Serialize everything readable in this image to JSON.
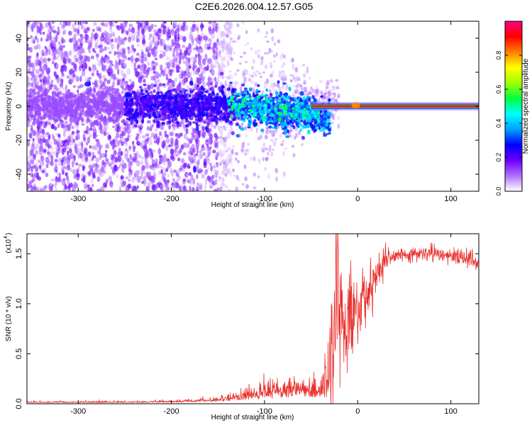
{
  "title": "C2E6.2026.004.12.57.G05",
  "colors": {
    "snr_line": "#e8302c",
    "tick": "#000000",
    "frame": "#000000",
    "carrier": "#e8202a",
    "carrier_edge": "#22c040"
  },
  "chart_data": [
    {
      "type": "heatmap",
      "name": "spectrogram",
      "xlabel": "Height of straight line (km)",
      "ylabel": "Frequency (Hz)",
      "xlim": [
        -355,
        130
      ],
      "ylim": [
        -50,
        50
      ],
      "xticks": [
        -300,
        -200,
        -100,
        0,
        100
      ],
      "yticks": [
        -40,
        -20,
        0,
        20,
        40
      ],
      "xtick_labels": [
        "-300",
        "-200",
        "-100",
        "0",
        "100"
      ],
      "ytick_labels": [
        "-40",
        "-20",
        "0",
        "20",
        "40"
      ],
      "colorbar": {
        "label": "Normalized spectral amplitude",
        "range": [
          0,
          1
        ],
        "ticks": [
          0.0,
          0.2,
          0.4,
          0.6,
          0.8
        ],
        "tick_labels": [
          "0.0",
          "0.2",
          "0.4",
          "0.6",
          "0.8"
        ],
        "colormap": [
          "#ffffff",
          "#b070ff",
          "#6a00ff",
          "#0000ff",
          "#00a0ff",
          "#00ffff",
          "#00ff40",
          "#a0ff00",
          "#ffff00",
          "#ff8000",
          "#ff0000",
          "#ff0080"
        ]
      },
      "features": {
        "noise_region_x": [
          -355,
          -150
        ],
        "carrier_start_x": -50,
        "carrier_frequency": 0,
        "spot_a": {
          "x": -290,
          "y": 13
        },
        "spot_b": {
          "x": -175,
          "y": -37
        }
      }
    },
    {
      "type": "line",
      "name": "snr",
      "xlabel": "Height of straight line (km)",
      "ylabel": "SNR (10 * v/v)",
      "scale_label": "(x10",
      "scale_exponent": "4",
      "xlim": [
        -355,
        130
      ],
      "ylim": [
        0,
        1.7
      ],
      "xticks": [
        -300,
        -200,
        -100,
        0,
        100
      ],
      "yticks": [
        0.0,
        0.5,
        1.0,
        1.5
      ],
      "xtick_labels": [
        "-300",
        "-200",
        "-100",
        "0",
        "100"
      ],
      "ytick_labels": [
        "0.0",
        "0.5",
        "1.0",
        "1.5"
      ],
      "profile": {
        "x": [
          -355,
          -300,
          -250,
          -200,
          -170,
          -150,
          -125,
          -100,
          -80,
          -60,
          -50,
          -40,
          -32,
          -28,
          -25,
          -20,
          -15,
          -10,
          -5,
          0,
          5,
          10,
          15,
          20,
          25,
          30,
          40,
          50,
          60,
          70,
          80,
          90,
          100,
          110,
          120,
          130
        ],
        "y": [
          0.03,
          0.03,
          0.03,
          0.04,
          0.05,
          0.06,
          0.09,
          0.14,
          0.18,
          0.2,
          0.2,
          0.18,
          0.12,
          0.6,
          0.95,
          1.0,
          0.95,
          0.85,
          0.9,
          0.95,
          1.0,
          1.05,
          1.15,
          1.3,
          1.4,
          1.45,
          1.48,
          1.5,
          1.5,
          1.5,
          1.5,
          1.5,
          1.48,
          1.46,
          1.43,
          1.42
        ]
      },
      "noise_amplitude": {
        "x": [
          -355,
          -200,
          -150,
          -120,
          -100,
          -60,
          -40,
          -30,
          -20,
          -10,
          0,
          20,
          40,
          100,
          130
        ],
        "y": [
          0.006,
          0.01,
          0.02,
          0.05,
          0.08,
          0.1,
          0.08,
          0.28,
          0.3,
          0.25,
          0.2,
          0.08,
          0.035,
          0.04,
          0.05
        ]
      }
    }
  ]
}
